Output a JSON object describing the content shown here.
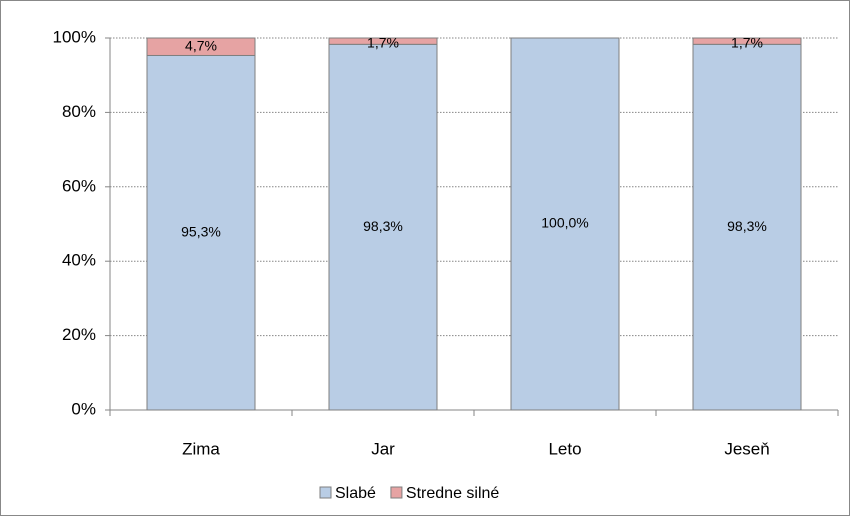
{
  "chart_data": {
    "type": "stacked_bar",
    "categories": [
      "Zima",
      "Jar",
      "Leto",
      "Jeseň"
    ],
    "series": [
      {
        "name": "Slabé",
        "color": "#b9cde5",
        "values": [
          95.3,
          98.3,
          100.0,
          98.3
        ],
        "value_labels": [
          "95,3%",
          "98,3%",
          "100,0%",
          "98,3%"
        ]
      },
      {
        "name": "Stredne silné",
        "color": "#e6a3a3",
        "values": [
          4.7,
          1.7,
          0,
          1.7
        ],
        "value_labels": [
          "4,7%",
          "1,7%",
          null,
          "1,7%"
        ]
      }
    ],
    "ylim": [
      0,
      100
    ],
    "yticks": [
      {
        "value": 0,
        "label": "0%"
      },
      {
        "value": 20,
        "label": "20%"
      },
      {
        "value": 40,
        "label": "40%"
      },
      {
        "value": 60,
        "label": "60%"
      },
      {
        "value": 80,
        "label": "80%"
      },
      {
        "value": 100,
        "label": "100%"
      }
    ],
    "grid": true,
    "legend": "bottom"
  }
}
